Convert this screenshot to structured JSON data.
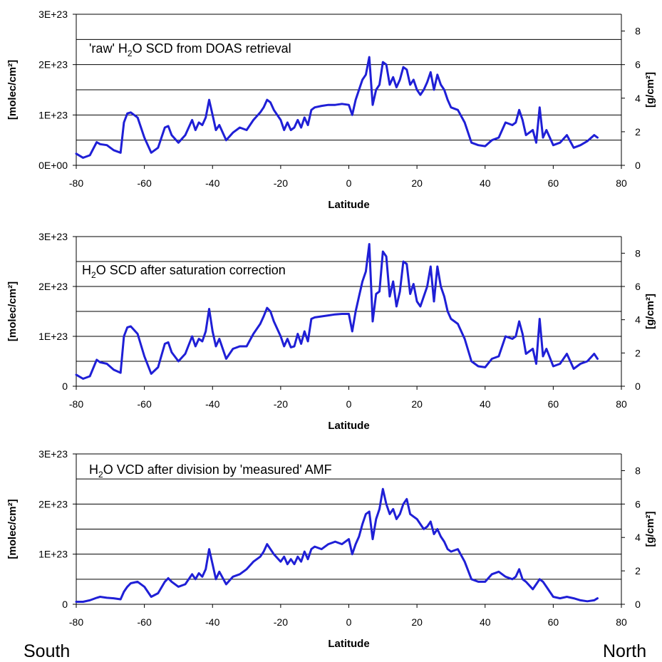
{
  "chart_data": [
    {
      "type": "line",
      "title": "'raw' H₂O SCD from DOAS retrieval",
      "title_parts": [
        "'raw' H",
        "2",
        "O SCD from DOAS retrieval"
      ],
      "xlabel": "Latitude",
      "ylabel": "[molec/cm²]",
      "y2label": "[g/cm²]",
      "xlim": [
        -80,
        80
      ],
      "ylim": [
        0,
        3e+23
      ],
      "y2lim": [
        0,
        9
      ],
      "xticks": [
        "-80",
        "-60",
        "-40",
        "-20",
        "0",
        "20",
        "40",
        "60",
        "80"
      ],
      "yticks": [
        "0E+00",
        "1E+23",
        "2E+23",
        "3E+23"
      ],
      "y2ticks": [
        "0",
        "2",
        "4",
        "6",
        "8"
      ],
      "grid": "horizontal",
      "color": "#1f1fd6",
      "series": [
        {
          "x": [
            -80,
            -78,
            -76,
            -74,
            -73,
            -71,
            -69,
            -67,
            -66,
            -65,
            -64,
            -62,
            -60,
            -58,
            -56,
            -54,
            -53,
            -52,
            -50,
            -48,
            -46,
            -45,
            -44,
            -43,
            -42,
            -41,
            -40,
            -39,
            -38,
            -36,
            -34,
            -32,
            -30,
            -28,
            -26,
            -25,
            -24,
            -23,
            -22,
            -20,
            -19,
            -18,
            -17,
            -16,
            -15,
            -14,
            -13,
            -12,
            -11,
            -10,
            -8,
            -6,
            -4,
            -2,
            0,
            1,
            2,
            3,
            4,
            5,
            6,
            7,
            8,
            9,
            10,
            11,
            12,
            13,
            14,
            15,
            16,
            17,
            18,
            19,
            20,
            21,
            22,
            23,
            24,
            25,
            26,
            27,
            28,
            29,
            30,
            32,
            34,
            36,
            38,
            40,
            42,
            44,
            46,
            48,
            49,
            50,
            51,
            52,
            54,
            55,
            56,
            57,
            58,
            60,
            62,
            64,
            66,
            68,
            70,
            72,
            73
          ],
          "y": [
            2.3e+22,
            1.5e+22,
            2e+22,
            4.6e+22,
            4.2e+22,
            4e+22,
            3e+22,
            2.5e+22,
            8.5e+22,
            1.03e+23,
            1.05e+23,
            9.5e+22,
            5.5e+22,
            2.5e+22,
            3.5e+22,
            7.5e+22,
            7.8e+22,
            6e+22,
            4.5e+22,
            6e+22,
            9e+22,
            7e+22,
            8.5e+22,
            8e+22,
            9.5e+22,
            1.3e+23,
            1e+23,
            7e+22,
            8e+22,
            5e+22,
            6.5e+22,
            7.5e+22,
            7e+22,
            9e+22,
            1.05e+23,
            1.15e+23,
            1.3e+23,
            1.25e+23,
            1.1e+23,
            9e+22,
            7e+22,
            8.5e+22,
            7e+22,
            7.5e+22,
            9e+22,
            7.5e+22,
            9.5e+22,
            8e+22,
            1.1e+23,
            1.15e+23,
            1.18e+23,
            1.2e+23,
            1.2e+23,
            1.22e+23,
            1.2e+23,
            1e+23,
            1.3e+23,
            1.5e+23,
            1.7e+23,
            1.8e+23,
            2.15e+23,
            1.2e+23,
            1.5e+23,
            1.6e+23,
            2.05e+23,
            2e+23,
            1.6e+23,
            1.75e+23,
            1.55e+23,
            1.7e+23,
            1.95e+23,
            1.9e+23,
            1.6e+23,
            1.7e+23,
            1.5e+23,
            1.4e+23,
            1.5e+23,
            1.65e+23,
            1.85e+23,
            1.5e+23,
            1.8e+23,
            1.6e+23,
            1.5e+23,
            1.3e+23,
            1.15e+23,
            1.1e+23,
            8.5e+22,
            4.5e+22,
            4e+22,
            3.8e+22,
            5e+22,
            5.5e+22,
            8.5e+22,
            8e+22,
            8.5e+22,
            1.1e+23,
            9e+22,
            6e+22,
            7e+22,
            4.5e+22,
            1.15e+23,
            5.5e+22,
            7e+22,
            4e+22,
            4.5e+22,
            6e+22,
            3.5e+22,
            4e+22,
            4.8e+22,
            6e+22,
            5.5e+22
          ]
        }
      ]
    },
    {
      "type": "line",
      "title": "H₂O SCD after saturation correction",
      "title_parts": [
        "H",
        "2",
        "O SCD after saturation correction"
      ],
      "xlabel": "Latitude",
      "ylabel": "[molec/cm²]",
      "y2label": "[g/cm²]",
      "xlim": [
        -80,
        80
      ],
      "ylim": [
        0,
        3e+23
      ],
      "y2lim": [
        0,
        9
      ],
      "xticks": [
        "-80",
        "-60",
        "-40",
        "-20",
        "0",
        "20",
        "40",
        "60",
        "80"
      ],
      "yticks": [
        "0",
        "1E+23",
        "2E+23",
        "3E+23"
      ],
      "y2ticks": [
        "0",
        "2",
        "4",
        "6",
        "8"
      ],
      "grid": "horizontal",
      "color": "#1f1fd6",
      "series": [
        {
          "x": [
            -80,
            -78,
            -76,
            -74,
            -73,
            -71,
            -69,
            -67,
            -66,
            -65,
            -64,
            -62,
            -60,
            -58,
            -56,
            -54,
            -53,
            -52,
            -50,
            -48,
            -46,
            -45,
            -44,
            -43,
            -42,
            -41,
            -40,
            -39,
            -38,
            -36,
            -34,
            -32,
            -30,
            -28,
            -26,
            -25,
            -24,
            -23,
            -22,
            -20,
            -19,
            -18,
            -17,
            -16,
            -15,
            -14,
            -13,
            -12,
            -11,
            -10,
            -8,
            -6,
            -4,
            -2,
            0,
            1,
            2,
            3,
            4,
            5,
            6,
            7,
            8,
            9,
            10,
            11,
            12,
            13,
            14,
            15,
            16,
            17,
            18,
            19,
            20,
            21,
            22,
            23,
            24,
            25,
            26,
            27,
            28,
            29,
            30,
            32,
            34,
            36,
            38,
            40,
            42,
            44,
            46,
            48,
            49,
            50,
            51,
            52,
            54,
            55,
            56,
            57,
            58,
            60,
            62,
            64,
            66,
            68,
            70,
            72,
            73
          ],
          "y": [
            2.3e+22,
            1.5e+22,
            2e+22,
            5.3e+22,
            4.8e+22,
            4.5e+22,
            3.3e+22,
            2.7e+22,
            1e+23,
            1.18e+23,
            1.2e+23,
            1.05e+23,
            6e+22,
            2.5e+22,
            3.8e+22,
            8.5e+22,
            8.8e+22,
            6.8e+22,
            5e+22,
            6.5e+22,
            1e+23,
            8e+22,
            9.5e+22,
            9e+22,
            1.1e+23,
            1.55e+23,
            1.1e+23,
            8e+22,
            9.5e+22,
            5.5e+22,
            7.5e+22,
            8e+22,
            8e+22,
            1.05e+23,
            1.25e+23,
            1.4e+23,
            1.57e+23,
            1.5e+23,
            1.3e+23,
            1e+23,
            8e+22,
            9.5e+22,
            7.8e+22,
            8e+22,
            1.05e+23,
            8.5e+22,
            1.1e+23,
            9e+22,
            1.35e+23,
            1.38e+23,
            1.4e+23,
            1.42e+23,
            1.44e+23,
            1.45e+23,
            1.45e+23,
            1.1e+23,
            1.5e+23,
            1.8e+23,
            2.1e+23,
            2.3e+23,
            2.85e+23,
            1.3e+23,
            1.85e+23,
            1.9e+23,
            2.7e+23,
            2.6e+23,
            1.8e+23,
            2.1e+23,
            1.6e+23,
            1.9e+23,
            2.5e+23,
            2.45e+23,
            1.85e+23,
            2.05e+23,
            1.7e+23,
            1.6e+23,
            1.8e+23,
            2e+23,
            2.4e+23,
            1.7e+23,
            2.4e+23,
            2e+23,
            1.8e+23,
            1.5e+23,
            1.35e+23,
            1.25e+23,
            9.5e+22,
            5e+22,
            4e+22,
            3.8e+22,
            5.5e+22,
            6e+22,
            1e+23,
            9.5e+22,
            1e+23,
            1.3e+23,
            1.05e+23,
            6.5e+22,
            7.5e+22,
            4.5e+22,
            1.35e+23,
            6e+22,
            7.5e+22,
            4e+22,
            4.5e+22,
            6.5e+22,
            3.5e+22,
            4.5e+22,
            5e+22,
            6.5e+22,
            5.5e+22
          ]
        }
      ]
    },
    {
      "type": "line",
      "title": "H₂O VCD after division by 'measured' AMF",
      "title_parts": [
        "H",
        "2",
        "O VCD after division by 'measured' AMF"
      ],
      "xlabel": "Latitude",
      "ylabel": "[molec/cm²]",
      "y2label": "[g/cm²]",
      "xlim": [
        -80,
        80
      ],
      "ylim": [
        0,
        3e+23
      ],
      "y2lim": [
        0,
        9
      ],
      "xticks": [
        "-80",
        "-60",
        "-40",
        "-20",
        "0",
        "20",
        "40",
        "60",
        "80"
      ],
      "yticks": [
        "0",
        "1E+23",
        "2E+23",
        "3E+23"
      ],
      "y2ticks": [
        "0",
        "2",
        "4",
        "6",
        "8"
      ],
      "grid": "horizontal",
      "color": "#1f1fd6",
      "series": [
        {
          "x": [
            -80,
            -78,
            -76,
            -74,
            -73,
            -71,
            -69,
            -67,
            -66,
            -65,
            -64,
            -62,
            -60,
            -58,
            -56,
            -54,
            -53,
            -52,
            -50,
            -48,
            -46,
            -45,
            -44,
            -43,
            -42,
            -41,
            -40,
            -39,
            -38,
            -36,
            -34,
            -32,
            -30,
            -28,
            -26,
            -25,
            -24,
            -23,
            -22,
            -20,
            -19,
            -18,
            -17,
            -16,
            -15,
            -14,
            -13,
            -12,
            -11,
            -10,
            -8,
            -6,
            -4,
            -2,
            0,
            1,
            2,
            3,
            4,
            5,
            6,
            7,
            8,
            9,
            10,
            11,
            12,
            13,
            14,
            15,
            16,
            17,
            18,
            19,
            20,
            21,
            22,
            23,
            24,
            25,
            26,
            27,
            28,
            29,
            30,
            32,
            34,
            36,
            38,
            40,
            42,
            44,
            46,
            48,
            49,
            50,
            51,
            52,
            54,
            55,
            56,
            57,
            58,
            60,
            62,
            64,
            66,
            68,
            70,
            72,
            73
          ],
          "y": [
            5e+21,
            5e+21,
            8e+21,
            1.3e+22,
            1.5e+22,
            1.3e+22,
            1.2e+22,
            1e+22,
            2.5e+22,
            3.5e+22,
            4.2e+22,
            4.5e+22,
            3.5e+22,
            1.5e+22,
            2.2e+22,
            4.5e+22,
            5.2e+22,
            4.5e+22,
            3.5e+22,
            4e+22,
            6e+22,
            5e+22,
            6.2e+22,
            5.5e+22,
            7e+22,
            1.1e+23,
            8e+22,
            5e+22,
            6.5e+22,
            4e+22,
            5.5e+22,
            6e+22,
            7e+22,
            8.5e+22,
            9.5e+22,
            1.05e+23,
            1.2e+23,
            1.1e+23,
            1e+23,
            8.5e+22,
            9.5e+22,
            8e+22,
            9e+22,
            8e+22,
            9.5e+22,
            8.5e+22,
            1.05e+23,
            9e+22,
            1.1e+23,
            1.15e+23,
            1.1e+23,
            1.2e+23,
            1.25e+23,
            1.2e+23,
            1.3e+23,
            1e+23,
            1.2e+23,
            1.35e+23,
            1.6e+23,
            1.8e+23,
            1.85e+23,
            1.3e+23,
            1.7e+23,
            1.9e+23,
            2.3e+23,
            2e+23,
            1.8e+23,
            1.9e+23,
            1.7e+23,
            1.8e+23,
            2e+23,
            2.1e+23,
            1.8e+23,
            1.75e+23,
            1.7e+23,
            1.6e+23,
            1.5e+23,
            1.55e+23,
            1.65e+23,
            1.4e+23,
            1.5e+23,
            1.35e+23,
            1.25e+23,
            1.1e+23,
            1.05e+23,
            1.1e+23,
            8.5e+22,
            5e+22,
            4.5e+22,
            4.5e+22,
            6e+22,
            6.5e+22,
            5.5e+22,
            5e+22,
            5.5e+22,
            7e+22,
            5e+22,
            4.5e+22,
            3e+22,
            4e+22,
            5e+22,
            4.5e+22,
            3.5e+22,
            1.5e+22,
            1.2e+22,
            1.5e+22,
            1.2e+22,
            8e+21,
            6e+21,
            8e+21,
            1.2e+22
          ]
        }
      ]
    }
  ],
  "corner_labels": {
    "left": "South",
    "right": "North"
  }
}
